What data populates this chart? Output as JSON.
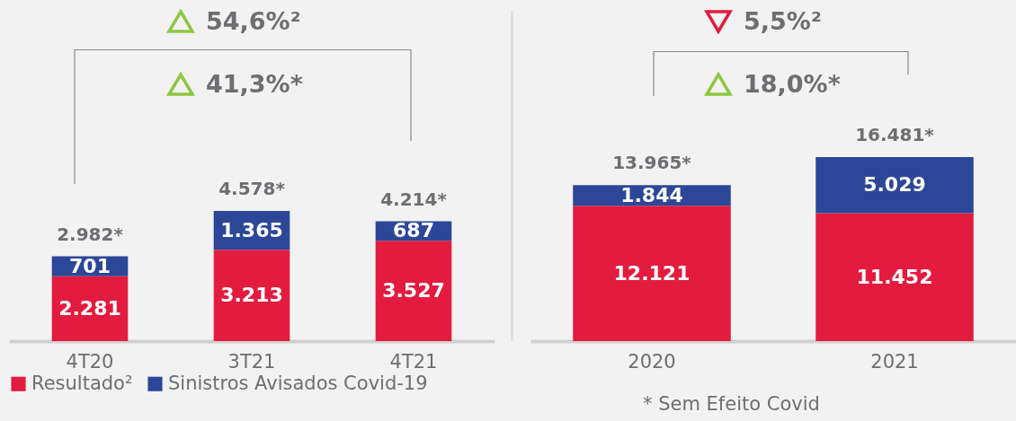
{
  "chart_data": [
    {
      "type": "bar",
      "stacked": true,
      "categories": [
        "4T20",
        "3T21",
        "4T21"
      ],
      "tick_labels": "x",
      "legend": "bottom",
      "series": [
        {
          "name": "Resultado²",
          "color": "#e31b3f",
          "values": [
            2281,
            3213,
            3527
          ],
          "value_labels": [
            "2.281",
            "3.213",
            "3.527"
          ]
        },
        {
          "name": "Sinistros Avisados Covid-19",
          "color": "#2c4797",
          "values": [
            701,
            1365,
            687
          ],
          "value_labels": [
            "701",
            "1.365",
            "687"
          ]
        }
      ],
      "totals": [
        "2.982*",
        "4.578*",
        "4.214*"
      ],
      "annotations": [
        "54,6%²",
        "41,3%*"
      ]
    },
    {
      "type": "bar",
      "stacked": true,
      "categories": [
        "2020",
        "2021"
      ],
      "tick_labels": "x",
      "series": [
        {
          "color": "#e31b3f",
          "values": [
            12121,
            11452
          ],
          "value_labels": [
            "12.121",
            "11.452"
          ]
        },
        {
          "color": "#2c4797",
          "values": [
            1844,
            5029
          ],
          "value_labels": [
            "1.844",
            "5.029"
          ]
        }
      ],
      "totals": [
        "13.965*",
        "16.481*"
      ],
      "annotations": [
        "5,5%²",
        "18,0%*",
        "* Sem Efeito Covid"
      ]
    }
  ]
}
